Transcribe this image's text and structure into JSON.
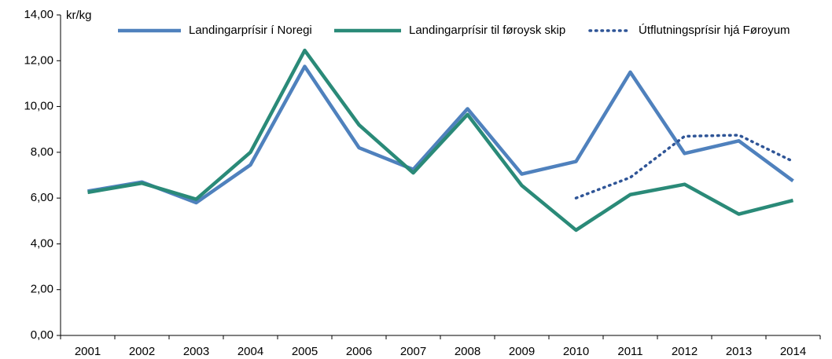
{
  "chart_data": {
    "type": "line",
    "unit_label": "kr/kg",
    "categories": [
      "2001",
      "2002",
      "2003",
      "2004",
      "2005",
      "2006",
      "2007",
      "2008",
      "2009",
      "2010",
      "2011",
      "2012",
      "2013",
      "2014"
    ],
    "series": [
      {
        "name": "Landingarprísir í Noregi",
        "color": "#4f81bd",
        "style": "solid",
        "values": [
          6.3,
          6.7,
          5.8,
          7.45,
          11.75,
          8.2,
          7.25,
          9.9,
          7.05,
          7.6,
          11.5,
          7.95,
          8.5,
          6.75
        ]
      },
      {
        "name": "Landingarprísir til føroysk skip",
        "color": "#2a8a78",
        "style": "solid",
        "values": [
          6.25,
          6.65,
          5.95,
          8.0,
          12.45,
          9.2,
          7.1,
          9.65,
          6.55,
          4.6,
          6.15,
          6.6,
          5.3,
          5.9
        ]
      },
      {
        "name": "Útflutningsprísir hjá Føroyum",
        "color": "#2f5597",
        "style": "dotted",
        "values": [
          null,
          null,
          null,
          null,
          null,
          null,
          null,
          null,
          null,
          6.0,
          6.9,
          8.7,
          8.75,
          7.6
        ]
      }
    ],
    "ylim": [
      0,
      14
    ],
    "yticks": [
      {
        "value": 0,
        "label": "0,00"
      },
      {
        "value": 2,
        "label": "2,00"
      },
      {
        "value": 4,
        "label": "4,00"
      },
      {
        "value": 6,
        "label": "6,00"
      },
      {
        "value": 8,
        "label": "8,00"
      },
      {
        "value": 10,
        "label": "10,00"
      },
      {
        "value": 12,
        "label": "12,00"
      },
      {
        "value": 14,
        "label": "14,00"
      }
    ],
    "legend": "top"
  }
}
